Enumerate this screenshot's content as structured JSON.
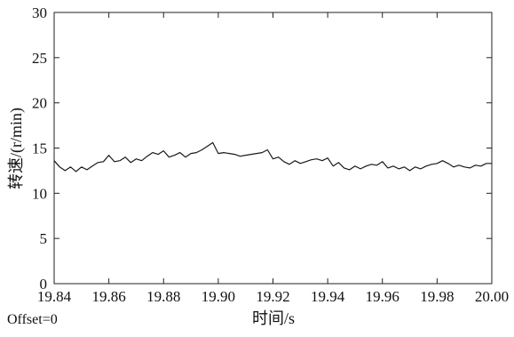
{
  "chart_data": {
    "type": "line",
    "title": "",
    "xlabel": "时间/s",
    "ylabel": "转速/(r/min)",
    "xlim": [
      19.84,
      20.0
    ],
    "ylim": [
      0,
      30
    ],
    "x_ticks": [
      19.84,
      19.86,
      19.88,
      19.9,
      19.92,
      19.94,
      19.96,
      19.98,
      20.0
    ],
    "x_tick_labels": [
      "19.84",
      "19.86",
      "19.88",
      "19.90",
      "19.92",
      "19.94",
      "19.96",
      "19.98",
      "20.00"
    ],
    "y_ticks": [
      0,
      5,
      10,
      15,
      20,
      25,
      30
    ],
    "y_tick_labels": [
      "0",
      "5",
      "10",
      "15",
      "20",
      "25",
      "30"
    ],
    "grid": false,
    "offset_text": "Offset=0",
    "line_color": "#1a1a1a",
    "series": [
      {
        "x": [
          19.84,
          19.842,
          19.844,
          19.846,
          19.848,
          19.85,
          19.852,
          19.854,
          19.856,
          19.858,
          19.86,
          19.862,
          19.864,
          19.866,
          19.868,
          19.87,
          19.872,
          19.874,
          19.876,
          19.878,
          19.88,
          19.882,
          19.884,
          19.886,
          19.888,
          19.89,
          19.892,
          19.894,
          19.896,
          19.898,
          19.9,
          19.902,
          19.904,
          19.906,
          19.908,
          19.91,
          19.912,
          19.914,
          19.916,
          19.918,
          19.92,
          19.922,
          19.924,
          19.926,
          19.928,
          19.93,
          19.932,
          19.934,
          19.936,
          19.938,
          19.94,
          19.942,
          19.944,
          19.946,
          19.948,
          19.95,
          19.952,
          19.954,
          19.956,
          19.958,
          19.96,
          19.962,
          19.964,
          19.966,
          19.968,
          19.97,
          19.972,
          19.974,
          19.976,
          19.978,
          19.98,
          19.982,
          19.984,
          19.986,
          19.988,
          19.99,
          19.992,
          19.994,
          19.996,
          19.998,
          20.0
        ],
        "values": [
          13.6,
          12.9,
          12.5,
          12.9,
          12.4,
          12.9,
          12.6,
          13.0,
          13.4,
          13.5,
          14.2,
          13.5,
          13.6,
          14.0,
          13.4,
          13.8,
          13.6,
          14.1,
          14.5,
          14.3,
          14.7,
          14.0,
          14.2,
          14.5,
          14.0,
          14.4,
          14.5,
          14.8,
          15.2,
          15.6,
          14.4,
          14.5,
          14.4,
          14.3,
          14.1,
          14.2,
          14.3,
          14.4,
          14.5,
          14.8,
          13.8,
          14.0,
          13.5,
          13.2,
          13.6,
          13.3,
          13.5,
          13.7,
          13.8,
          13.6,
          13.9,
          13.0,
          13.4,
          12.8,
          12.6,
          13.0,
          12.7,
          13.0,
          13.2,
          13.1,
          13.5,
          12.8,
          13.0,
          12.7,
          12.9,
          12.5,
          12.9,
          12.7,
          13.0,
          13.2,
          13.3,
          13.6,
          13.3,
          12.9,
          13.1,
          12.9,
          12.8,
          13.1,
          13.0,
          13.3,
          13.3
        ]
      }
    ]
  }
}
